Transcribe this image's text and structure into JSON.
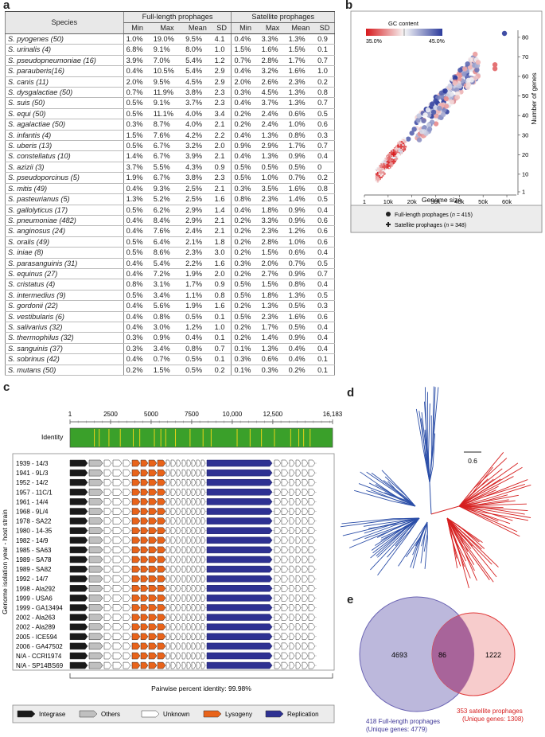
{
  "panels": {
    "a": "a",
    "b": "b",
    "c": "c",
    "d": "d",
    "e": "e"
  },
  "table": {
    "species_header": "Species",
    "group1": "Full-length prophages",
    "group2": "Satellite prophages",
    "sub": [
      "Min",
      "Max",
      "Mean",
      "SD",
      "Min",
      "Max",
      "Mean",
      "SD"
    ],
    "rows": [
      [
        "S. pyogenes (50)",
        "1.0%",
        "19.0%",
        "9.5%",
        "4.1",
        "0.4%",
        "3.3%",
        "1.3%",
        "0.9"
      ],
      [
        "S. urinalis (4)",
        "6.8%",
        "9.1%",
        "8.0%",
        "1.0",
        "1.5%",
        "1.6%",
        "1.5%",
        "0.1"
      ],
      [
        "S. pseudopneumoniae (16)",
        "3.9%",
        "7.0%",
        "5.4%",
        "1.2",
        "0.7%",
        "2.8%",
        "1.7%",
        "0.7"
      ],
      [
        "S. parauberis(16)",
        "0.4%",
        "10.5%",
        "5.4%",
        "2.9",
        "0.4%",
        "3.2%",
        "1.6%",
        "1.0"
      ],
      [
        "S. canis (11)",
        "2.0%",
        "9.5%",
        "4.5%",
        "2.9",
        "2.0%",
        "2.6%",
        "2.3%",
        "0.2"
      ],
      [
        "S. dysgalactiae (50)",
        "0.7%",
        "11.9%",
        "3.8%",
        "2.3",
        "0.3%",
        "4.5%",
        "1.3%",
        "0.8"
      ],
      [
        "S. suis (50)",
        "0.5%",
        "9.1%",
        "3.7%",
        "2.3",
        "0.4%",
        "3.7%",
        "1.3%",
        "0.7"
      ],
      [
        "S. equi (50)",
        "0.5%",
        "11.1%",
        "4.0%",
        "3.4",
        "0.2%",
        "2.4%",
        "0.6%",
        "0.5"
      ],
      [
        "S. agalactiae (50)",
        "0.3%",
        "8.7%",
        "4.0%",
        "2.1",
        "0.2%",
        "2.4%",
        "1.0%",
        "0.6"
      ],
      [
        "S. infantis (4)",
        "1.5%",
        "7.6%",
        "4.2%",
        "2.2",
        "0.4%",
        "1.3%",
        "0.8%",
        "0.3"
      ],
      [
        "S. uberis (13)",
        "0.5%",
        "6.7%",
        "3.2%",
        "2.0",
        "0.9%",
        "2.9%",
        "1.7%",
        "0.7"
      ],
      [
        "S. constellatus (10)",
        "1.4%",
        "6.7%",
        "3.9%",
        "2.1",
        "0.4%",
        "1.3%",
        "0.9%",
        "0.4"
      ],
      [
        "S. azizii (3)",
        "3.7%",
        "5.5%",
        "4.3%",
        "0.9",
        "0.5%",
        "0.5%",
        "0.5%",
        "0"
      ],
      [
        "S. pseudoporcinus (5)",
        "1.9%",
        "6.7%",
        "3.8%",
        "2.3",
        "0.5%",
        "1.0%",
        "0.7%",
        "0.2"
      ],
      [
        "S. mitis (49)",
        "0.4%",
        "9.3%",
        "2.5%",
        "2.1",
        "0.3%",
        "3.5%",
        "1.6%",
        "0.8"
      ],
      [
        "S. pasteurianus (5)",
        "1.3%",
        "5.2%",
        "2.5%",
        "1.6",
        "0.8%",
        "2.3%",
        "1.4%",
        "0.5"
      ],
      [
        "S. gallolyticus (17)",
        "0.5%",
        "6.2%",
        "2.9%",
        "1.4",
        "0.4%",
        "1.8%",
        "0.9%",
        "0.4"
      ],
      [
        "S. pneumoniae (482)",
        "0.4%",
        "8.4%",
        "2.9%",
        "2.1",
        "0.2%",
        "3.3%",
        "0.9%",
        "0.6"
      ],
      [
        "S. anginosus (24)",
        "0.4%",
        "7.6%",
        "2.4%",
        "2.1",
        "0.2%",
        "2.3%",
        "1.2%",
        "0.6"
      ],
      [
        "S. oralis (49)",
        "0.5%",
        "6.4%",
        "2.1%",
        "1.8",
        "0.2%",
        "2.8%",
        "1.0%",
        "0.6"
      ],
      [
        "S. iniae (8)",
        "0.5%",
        "8.6%",
        "2.3%",
        "3.0",
        "0.2%",
        "1.5%",
        "0.6%",
        "0.4"
      ],
      [
        "S. parasanguinis (31)",
        "0.4%",
        "5.4%",
        "2.2%",
        "1.6",
        "0.3%",
        "2.0%",
        "0.7%",
        "0.5"
      ],
      [
        "S. equinus (27)",
        "0.4%",
        "7.2%",
        "1.9%",
        "2.0",
        "0.2%",
        "2.7%",
        "0.9%",
        "0.7"
      ],
      [
        "S. cristatus (4)",
        "0.8%",
        "3.1%",
        "1.7%",
        "0.9",
        "0.5%",
        "1.5%",
        "0.8%",
        "0.4"
      ],
      [
        "S. intermedius (9)",
        "0.5%",
        "3.4%",
        "1.1%",
        "0.8",
        "0.5%",
        "1.8%",
        "1.3%",
        "0.5"
      ],
      [
        "S. gordonii (22)",
        "0.4%",
        "5.6%",
        "1.9%",
        "1.6",
        "0.2%",
        "1.3%",
        "0.5%",
        "0.3"
      ],
      [
        "S. vestibularis (6)",
        "0.4%",
        "0.8%",
        "0.5%",
        "0.1",
        "0.5%",
        "2.3%",
        "1.6%",
        "0.6"
      ],
      [
        "S. salivarius (32)",
        "0.4%",
        "3.0%",
        "1.2%",
        "1.0",
        "0.2%",
        "1.7%",
        "0.5%",
        "0.4"
      ],
      [
        "S. thermophilus (32)",
        "0.3%",
        "0.9%",
        "0.4%",
        "0.1",
        "0.2%",
        "1.4%",
        "0.9%",
        "0.4"
      ],
      [
        "S. sanguinis (37)",
        "0.3%",
        "3.4%",
        "0.8%",
        "0.7",
        "0.1%",
        "1.3%",
        "0.4%",
        "0.4"
      ],
      [
        "S. sobrinus (42)",
        "0.4%",
        "0.7%",
        "0.5%",
        "0.1",
        "0.3%",
        "0.6%",
        "0.4%",
        "0.1"
      ],
      [
        "S. mutans (50)",
        "0.2%",
        "1.5%",
        "0.5%",
        "0.2",
        "0.1%",
        "0.3%",
        "0.2%",
        "0.1"
      ]
    ]
  },
  "scatter": {
    "gc_title": "GC content",
    "gc_min": "35.0%",
    "gc_max": "45.0%",
    "xlabel": "Genome size",
    "ylabel": "Number of genes",
    "xticks": [
      "1",
      "10k",
      "20k",
      "30k",
      "40k",
      "50k",
      "60k"
    ],
    "yticks": [
      "1",
      "10",
      "20",
      "30",
      "40",
      "50",
      "60",
      "70",
      "80"
    ],
    "legend_full_prefix": "Full-length prophages (",
    "legend_full_n": "n",
    "legend_full_suffix": " = 415)",
    "legend_sat_prefix": "Satellite prophages (",
    "legend_sat_n": "n",
    "legend_sat_suffix": " = 348)",
    "colors": {
      "low": "#d7191c",
      "mid": "#f7f7f7",
      "high": "#2c3b9c"
    }
  },
  "chart_data": {
    "type": "scatter",
    "xlabel": "Genome size",
    "ylabel": "Number of genes",
    "xlim": [
      1,
      62000
    ],
    "ylim": [
      1,
      82
    ],
    "colorbar": {
      "label": "GC content",
      "range": [
        "35.0%",
        "45.0%"
      ]
    },
    "series": [
      {
        "name": "Full-length prophages (n = 415)",
        "marker": "circle",
        "x_range": [
          18000,
          62000
        ],
        "y_range": [
          25,
          82
        ]
      },
      {
        "name": "Satellite prophages (n = 348)",
        "marker": "cross",
        "x_range": [
          5000,
          20000
        ],
        "y_range": [
          6,
          33
        ]
      }
    ]
  },
  "genome_map": {
    "scale_ticks": [
      "1",
      "2500",
      "5000",
      "7500",
      "10,000",
      "12,500",
      "16,183"
    ],
    "identity_label": "Identity",
    "yaxis_label": "Genome isolation year - host strain",
    "strains": [
      "1939 - 14/3",
      "1941 - 9L/3",
      "1952 - 14/2",
      "1957 - 11C/1",
      "1961 - 14/4",
      "1968 - 9L/4",
      "1978 - SA22",
      "1980 - 14-35",
      "1982 - 14/9",
      "1985 - SA63",
      "1989 - SA78",
      "1989 - SA82",
      "1992 - 14/7",
      "1998 - Ala292",
      "1999 - USA6",
      "1999 - GA13494",
      "2002 - Ala263",
      "2002 - Ala289",
      "2005 - ICE594",
      "2006 - GA47502",
      "N/A - CCRI1974",
      "N/A - SP14BS69"
    ],
    "pairwise": "Pairwise percent identity: 99.98%",
    "legend": [
      "Integrase",
      "Others",
      "Unknown",
      "Lysogeny",
      "Replication"
    ],
    "colors": {
      "integrase": "#1a1a1a",
      "others": "#c0c0c0",
      "unknown": "#ffffff",
      "lysogeny": "#e8631a",
      "replication": "#2e3192",
      "identity": "#3aa02a",
      "identity_mark": "#e8d21a"
    }
  },
  "tree": {
    "scale": "0.6",
    "colors": {
      "blue": "#2c4fa8",
      "red": "#d62020"
    }
  },
  "venn": {
    "left_only": "4693",
    "overlap": "86",
    "right_only": "1222",
    "left_label1": "418 Full-length prophages",
    "left_label2": "(Unique genes: 4779)",
    "right_label1": "353 satellite prophages",
    "right_label2": "(Unique genes: 1308)",
    "colors": {
      "left_fill": "#bcb8dc",
      "left_stroke": "#6a63b3",
      "right_fill": "#f6c3c3",
      "right_stroke": "#e03a3a",
      "overlap": "#a8649a"
    }
  }
}
